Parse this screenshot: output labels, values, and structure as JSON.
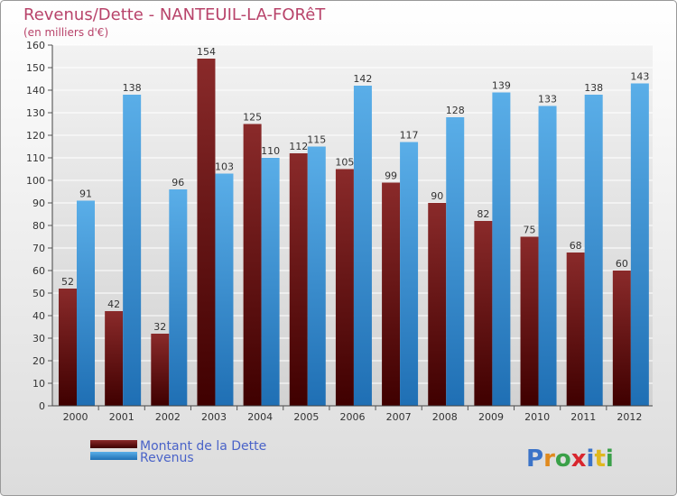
{
  "chart_data": {
    "type": "bar",
    "title": "Revenus/Dette - NANTEUIL-LA-FORêT",
    "subtitle": "(en milliers d'€)",
    "categories": [
      "2000",
      "2001",
      "2002",
      "2003",
      "2004",
      "2005",
      "2006",
      "2007",
      "2008",
      "2009",
      "2010",
      "2011",
      "2012"
    ],
    "series": [
      {
        "name": "Montant de la Dette",
        "color": "#7a1a1a",
        "values": [
          52,
          42,
          32,
          154,
          125,
          112,
          105,
          99,
          90,
          82,
          75,
          68,
          60
        ]
      },
      {
        "name": "Revenus",
        "color": "#4aa0e0",
        "values": [
          91,
          138,
          96,
          103,
          110,
          115,
          142,
          117,
          128,
          139,
          133,
          138,
          143
        ]
      }
    ],
    "ylim": [
      0,
      160
    ],
    "yticks": [
      0,
      10,
      20,
      30,
      40,
      50,
      60,
      70,
      80,
      90,
      100,
      110,
      120,
      130,
      140,
      150,
      160
    ],
    "grid": true,
    "legend_position": "bottom-left"
  },
  "logo_text": [
    "P",
    "r",
    "o",
    "x",
    "i",
    "t",
    "i"
  ]
}
